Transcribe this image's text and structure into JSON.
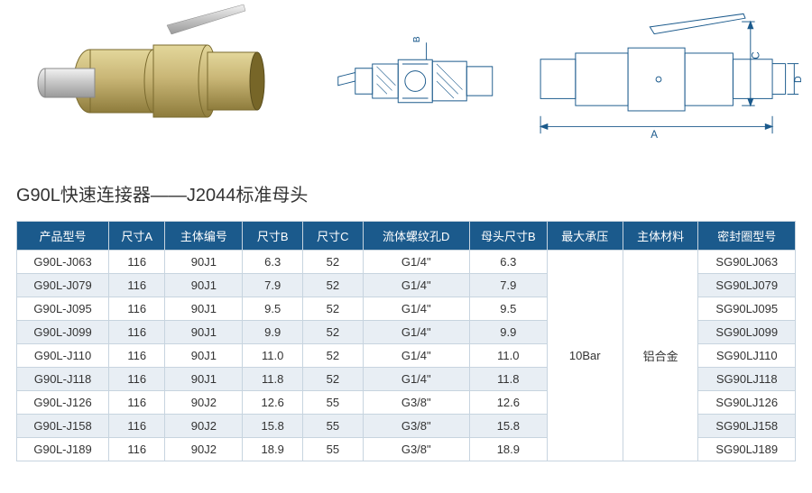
{
  "title": "G90L快速连接器——J2044标准母头",
  "diagram": {
    "photo_label": "product-photo",
    "section_label": "cross-section",
    "outline_label": "dimensioned-outline",
    "dim_labels": {
      "A": "A",
      "B": "B",
      "C": "C",
      "D": "D"
    },
    "colors": {
      "brass": "#c9b676",
      "brass_dark": "#a89752",
      "steel": "#d0d0d0",
      "line": "#1b5a8c"
    }
  },
  "table": {
    "header_bg": "#1b5a8c",
    "header_fg": "#ffffff",
    "stripe_bg": "#e8eef4",
    "border": "#c7d4df",
    "columns": [
      "产品型号",
      "尺寸A",
      "主体编号",
      "尺寸B",
      "尺寸C",
      "流体螺纹孔D",
      "母头尺寸B",
      "最大承压",
      "主体材料",
      "密封圈型号"
    ],
    "merged": {
      "pressure": "10Bar",
      "material": "铝合金"
    },
    "rows": [
      {
        "model": "G90L-J063",
        "A": "116",
        "body": "90J1",
        "B": "6.3",
        "C": "52",
        "thread": "G1/4\"",
        "FB": "6.3",
        "seal": "SG90LJ063"
      },
      {
        "model": "G90L-J079",
        "A": "116",
        "body": "90J1",
        "B": "7.9",
        "C": "52",
        "thread": "G1/4\"",
        "FB": "7.9",
        "seal": "SG90LJ079"
      },
      {
        "model": "G90L-J095",
        "A": "116",
        "body": "90J1",
        "B": "9.5",
        "C": "52",
        "thread": "G1/4\"",
        "FB": "9.5",
        "seal": "SG90LJ095"
      },
      {
        "model": "G90L-J099",
        "A": "116",
        "body": "90J1",
        "B": "9.9",
        "C": "52",
        "thread": "G1/4\"",
        "FB": "9.9",
        "seal": "SG90LJ099"
      },
      {
        "model": "G90L-J110",
        "A": "116",
        "body": "90J1",
        "B": "11.0",
        "C": "52",
        "thread": "G1/4\"",
        "FB": "11.0",
        "seal": "SG90LJ110"
      },
      {
        "model": "G90L-J118",
        "A": "116",
        "body": "90J1",
        "B": "11.8",
        "C": "52",
        "thread": "G1/4\"",
        "FB": "11.8",
        "seal": "SG90LJ118"
      },
      {
        "model": "G90L-J126",
        "A": "116",
        "body": "90J2",
        "B": "12.6",
        "C": "55",
        "thread": "G3/8\"",
        "FB": "12.6",
        "seal": "SG90LJ126"
      },
      {
        "model": "G90L-J158",
        "A": "116",
        "body": "90J2",
        "B": "15.8",
        "C": "55",
        "thread": "G3/8\"",
        "FB": "15.8",
        "seal": "SG90LJ158"
      },
      {
        "model": "G90L-J189",
        "A": "116",
        "body": "90J2",
        "B": "18.9",
        "C": "55",
        "thread": "G3/8\"",
        "FB": "18.9",
        "seal": "SG90LJ189"
      }
    ]
  }
}
